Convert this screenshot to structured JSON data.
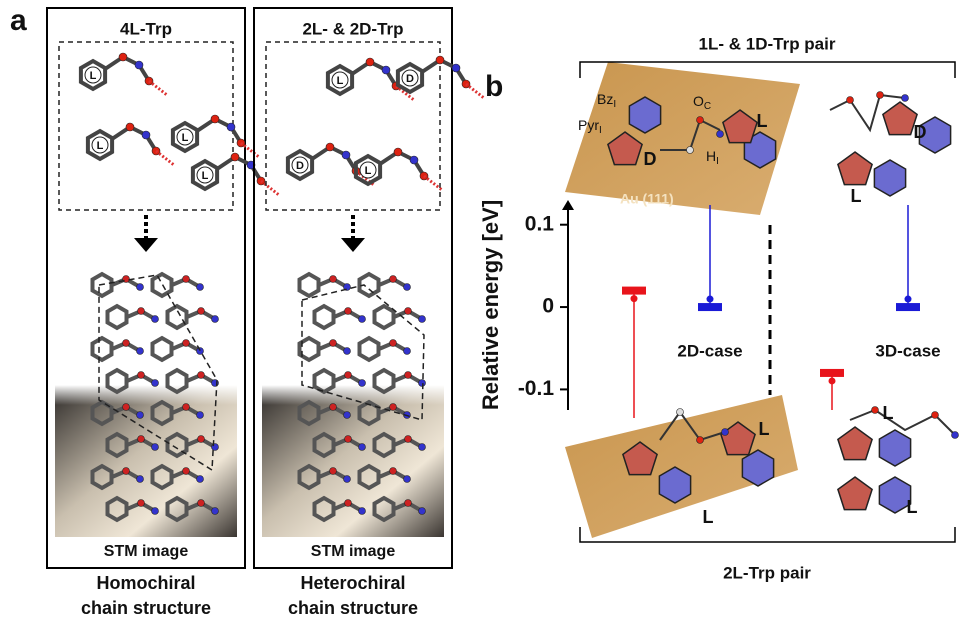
{
  "panel_a": {
    "label": "a",
    "columns": [
      {
        "title": "4L-Trp",
        "labels": [
          "L",
          "L",
          "L",
          "L"
        ],
        "image_caption": "STM image",
        "structure": [
          "Homochiral",
          "chain structure"
        ]
      },
      {
        "title": "2L- & 2D-Trp",
        "labels": [
          "L",
          "D",
          "D",
          "L"
        ],
        "image_caption": "STM image",
        "structure": [
          "Heterochiral",
          "chain structure"
        ]
      }
    ]
  },
  "panel_b": {
    "label": "b",
    "surface": "Au (111)",
    "atom_labels": [
      {
        "text": "Bz",
        "sub": "I"
      },
      {
        "text": "Pyr",
        "sub": "I"
      },
      {
        "text": "O",
        "sub": "C"
      },
      {
        "text": "H",
        "sub": "I"
      }
    ],
    "top_labels": [
      "D",
      "L",
      "D",
      "L"
    ],
    "bottom_labels": [
      "L",
      "L",
      "L",
      "L"
    ]
  },
  "chart_data": {
    "type": "energy-levels",
    "y_label": "Relative energy [eV]",
    "categories": [
      "2D-case",
      "3D-case"
    ],
    "ylim": [
      -0.125,
      0.13
    ],
    "yticks": [
      0.1,
      0,
      -0.1
    ],
    "series": [
      {
        "name": "2L-Trp pair",
        "color": "#e8141b",
        "values": [
          0.02,
          -0.08
        ]
      },
      {
        "name": "1L- & 1D-Trp pair",
        "color": "#1a1ad6",
        "values": [
          0,
          0
        ]
      }
    ]
  }
}
